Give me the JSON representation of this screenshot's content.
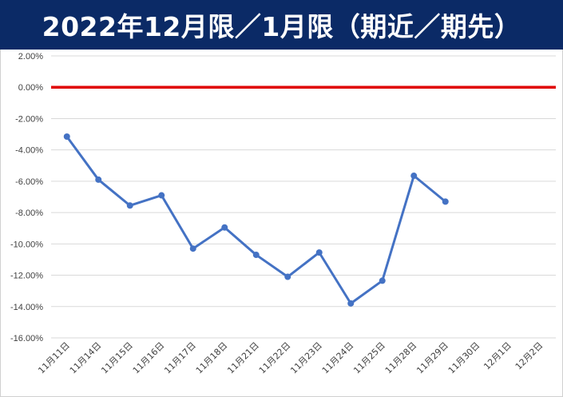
{
  "title": "2022年12月限／1月限（期近／期先）",
  "chart_data": {
    "type": "line",
    "title": "2022年12月限／1月限（期近／期先）",
    "xlabel": "",
    "ylabel": "",
    "categories": [
      "11月11日",
      "11月14日",
      "11月15日",
      "11月16日",
      "11月17日",
      "11月18日",
      "11月21日",
      "11月22日",
      "11月23日",
      "11月24日",
      "11月25日",
      "11月28日",
      "11月29日",
      "11月30日",
      "12月1日",
      "12月2日"
    ],
    "series": [
      {
        "color": "#4472c4",
        "values": [
          -3.15,
          -5.9,
          -7.55,
          -6.9,
          -10.3,
          -8.95,
          -10.7,
          -12.1,
          -10.55,
          -13.8,
          -12.35,
          -5.65,
          -7.3,
          null,
          null,
          null
        ]
      }
    ],
    "reference_line": {
      "value": 0,
      "color": "#e00000"
    },
    "ylim": [
      -16,
      2
    ],
    "ytick_step": 2,
    "ytick_labels": [
      "2.00%",
      "0.00%",
      "-2.00%",
      "-4.00%",
      "-6.00%",
      "-8.00%",
      "-10.00%",
      "-12.00%",
      "-14.00%",
      "-16.00%"
    ],
    "grid": true,
    "legend": "none"
  },
  "colors": {
    "title_bar": "#0b2a66",
    "title_text": "#ffffff",
    "gridline": "#d9d9d9"
  }
}
